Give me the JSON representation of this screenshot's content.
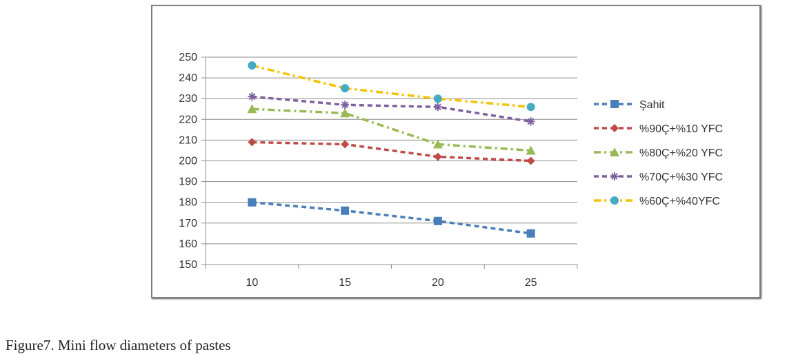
{
  "chart_data": {
    "type": "line",
    "title": "",
    "xlabel": "",
    "ylabel": "",
    "categories": [
      "10",
      "15",
      "20",
      "25"
    ],
    "ylim": [
      150,
      250
    ],
    "yticks": [
      150,
      160,
      170,
      180,
      190,
      200,
      210,
      220,
      230,
      240,
      250
    ],
    "grid": "horizontal",
    "legend": "right",
    "series": [
      {
        "name": "Şahit",
        "values": [
          180,
          176,
          171,
          165
        ],
        "color": "#4a7ebb",
        "marker": "square",
        "dash": "dash"
      },
      {
        "name": "%90Ç+%10 YFC",
        "values": [
          209,
          208,
          202,
          200
        ],
        "color": "#be4b48",
        "marker": "diamond",
        "dash": "dash"
      },
      {
        "name": "%80Ç+%20 YFC",
        "values": [
          225,
          223,
          208,
          205
        ],
        "color": "#98b954",
        "marker": "triangle",
        "dash": "dashdot"
      },
      {
        "name": "%70Ç+%30 YFC",
        "values": [
          231,
          227,
          226,
          219
        ],
        "color": "#7d60a0",
        "marker": "star",
        "dash": "dash"
      },
      {
        "name": "%60Ç+%40YFC",
        "values": [
          246,
          235,
          230,
          226
        ],
        "color": "#f5c200",
        "marker": "circle",
        "dash": "dashdot",
        "marker_color": "#46aac5"
      }
    ]
  },
  "caption": "Figure7. Mini flow diameters of pastes"
}
